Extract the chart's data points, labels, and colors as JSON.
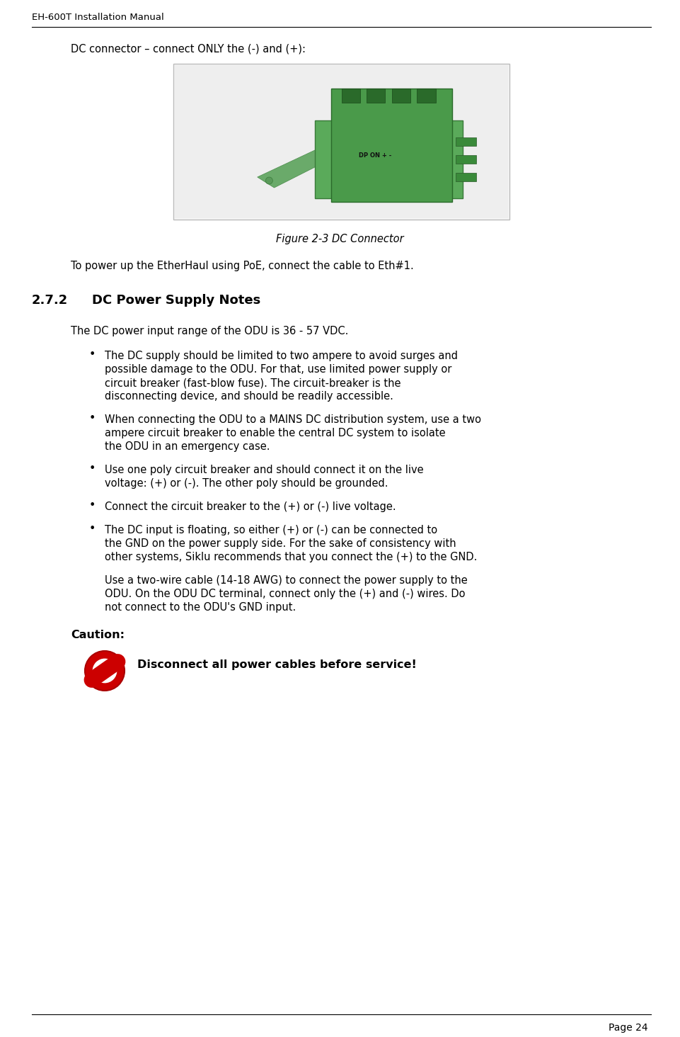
{
  "page_title": "EH-600T Installation Manual",
  "page_number": "Page 24",
  "background_color": "#ffffff",
  "text_color": "#000000",
  "section_intro": "DC connector – connect ONLY the (-) and (+):",
  "figure_caption": "Figure 2-3 DC Connector",
  "poe_text": "To power up the EtherHaul using PoE, connect the cable to Eth#1.",
  "section_number": "2.7.2",
  "section_title": "DC Power Supply Notes",
  "intro_paragraph": "The DC power input range of the ODU is 36 - 57 VDC.",
  "bullet_points": [
    "The DC supply should be limited to two ampere to avoid surges and possible damage to the ODU. For that, use limited power supply or circuit breaker (fast-blow fuse). The circuit-breaker is the disconnecting device, and should be readily accessible.",
    "When connecting the ODU to a MAINS DC distribution system, use a two ampere circuit breaker to enable the central DC system to isolate the ODU in an emergency case.",
    "Use one poly circuit breaker and should connect it on the live voltage: (+) or (-). The other poly should be grounded.",
    "Connect the circuit breaker to the (+) or (-) live voltage.",
    "The DC input is floating, so either (+) or (-) can be connected to the GND on the power supply side. For the sake of consistency with other systems, Siklu recommends that you connect the (+) to the GND."
  ],
  "extra_paragraph": "Use a two-wire cable (14-18 AWG) to connect the power supply to the ODU. On the ODU DC terminal, connect only the (+) and (-) wires. Do not connect to the ODU's GND input.",
  "caution_label": "Caution:",
  "caution_text": "Disconnect all power cables before service!",
  "body_fontsize": 10.5,
  "header_fontsize": 9.5,
  "section_title_fontsize": 13,
  "caution_fontsize": 11.5,
  "page_num_fontsize": 10
}
